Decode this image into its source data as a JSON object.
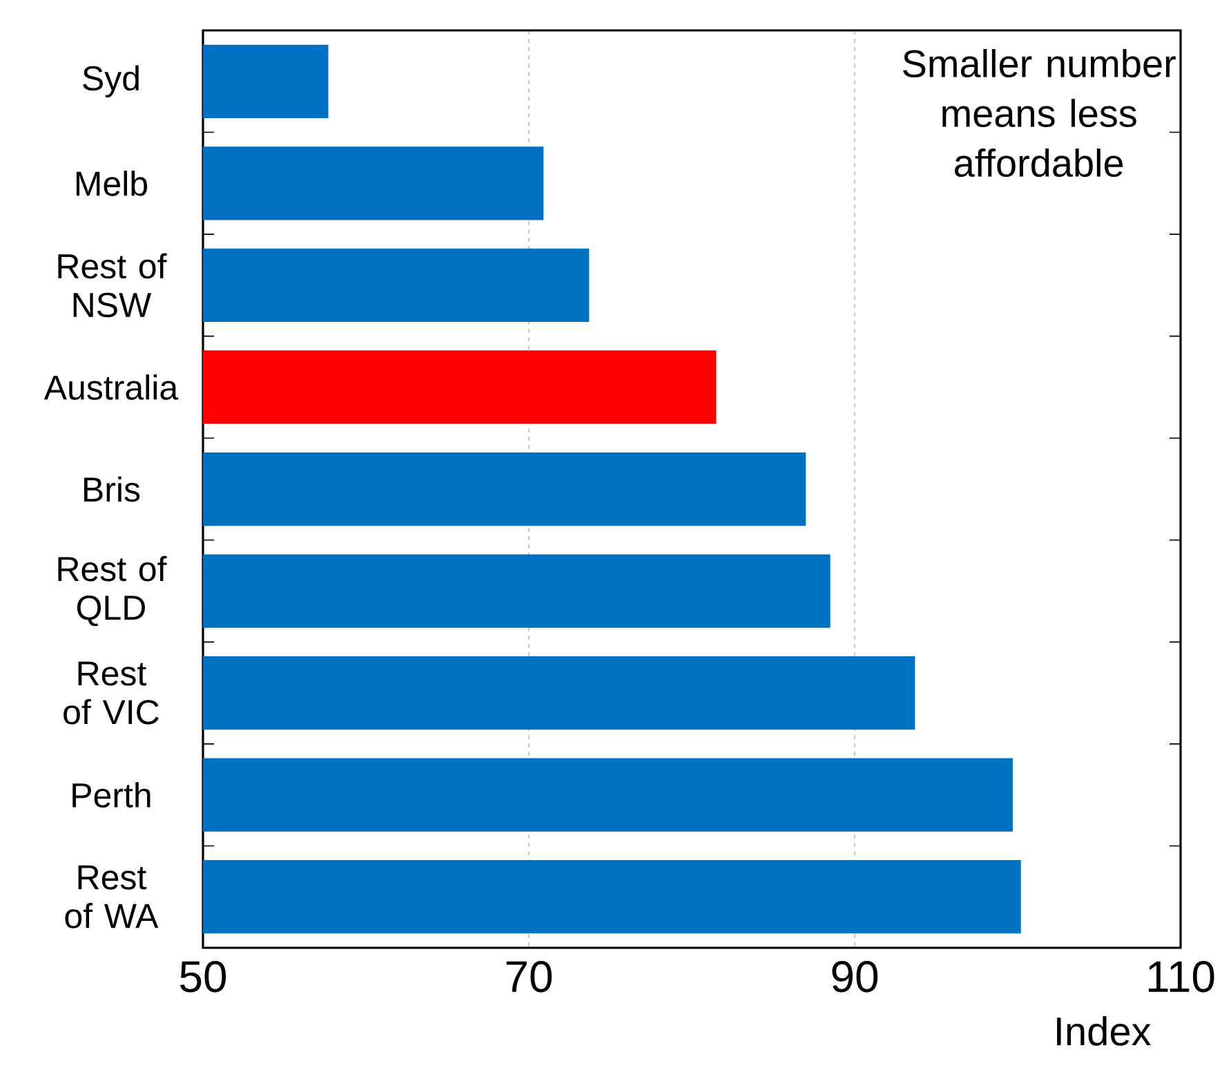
{
  "chart_data": {
    "type": "bar",
    "orientation": "horizontal",
    "categories": [
      "Syd",
      "Melb",
      "Rest of NSW",
      "Australia",
      "Bris",
      "Rest of QLD",
      "Rest of VIC",
      "Perth",
      "Rest of WA"
    ],
    "values": [
      57.7,
      70.9,
      73.7,
      81.5,
      87.0,
      88.5,
      93.7,
      99.7,
      100.2
    ],
    "colors": [
      "#0070c0",
      "#0070c0",
      "#0070c0",
      "#ff0000",
      "#0070c0",
      "#0070c0",
      "#0070c0",
      "#0070c0",
      "#0070c0"
    ],
    "xlim": [
      50,
      110
    ],
    "xticks": [
      50,
      70,
      90,
      110
    ],
    "xlabel": "Index",
    "grid": "x",
    "annotations": [
      "Smaller number means less affordable"
    ]
  }
}
